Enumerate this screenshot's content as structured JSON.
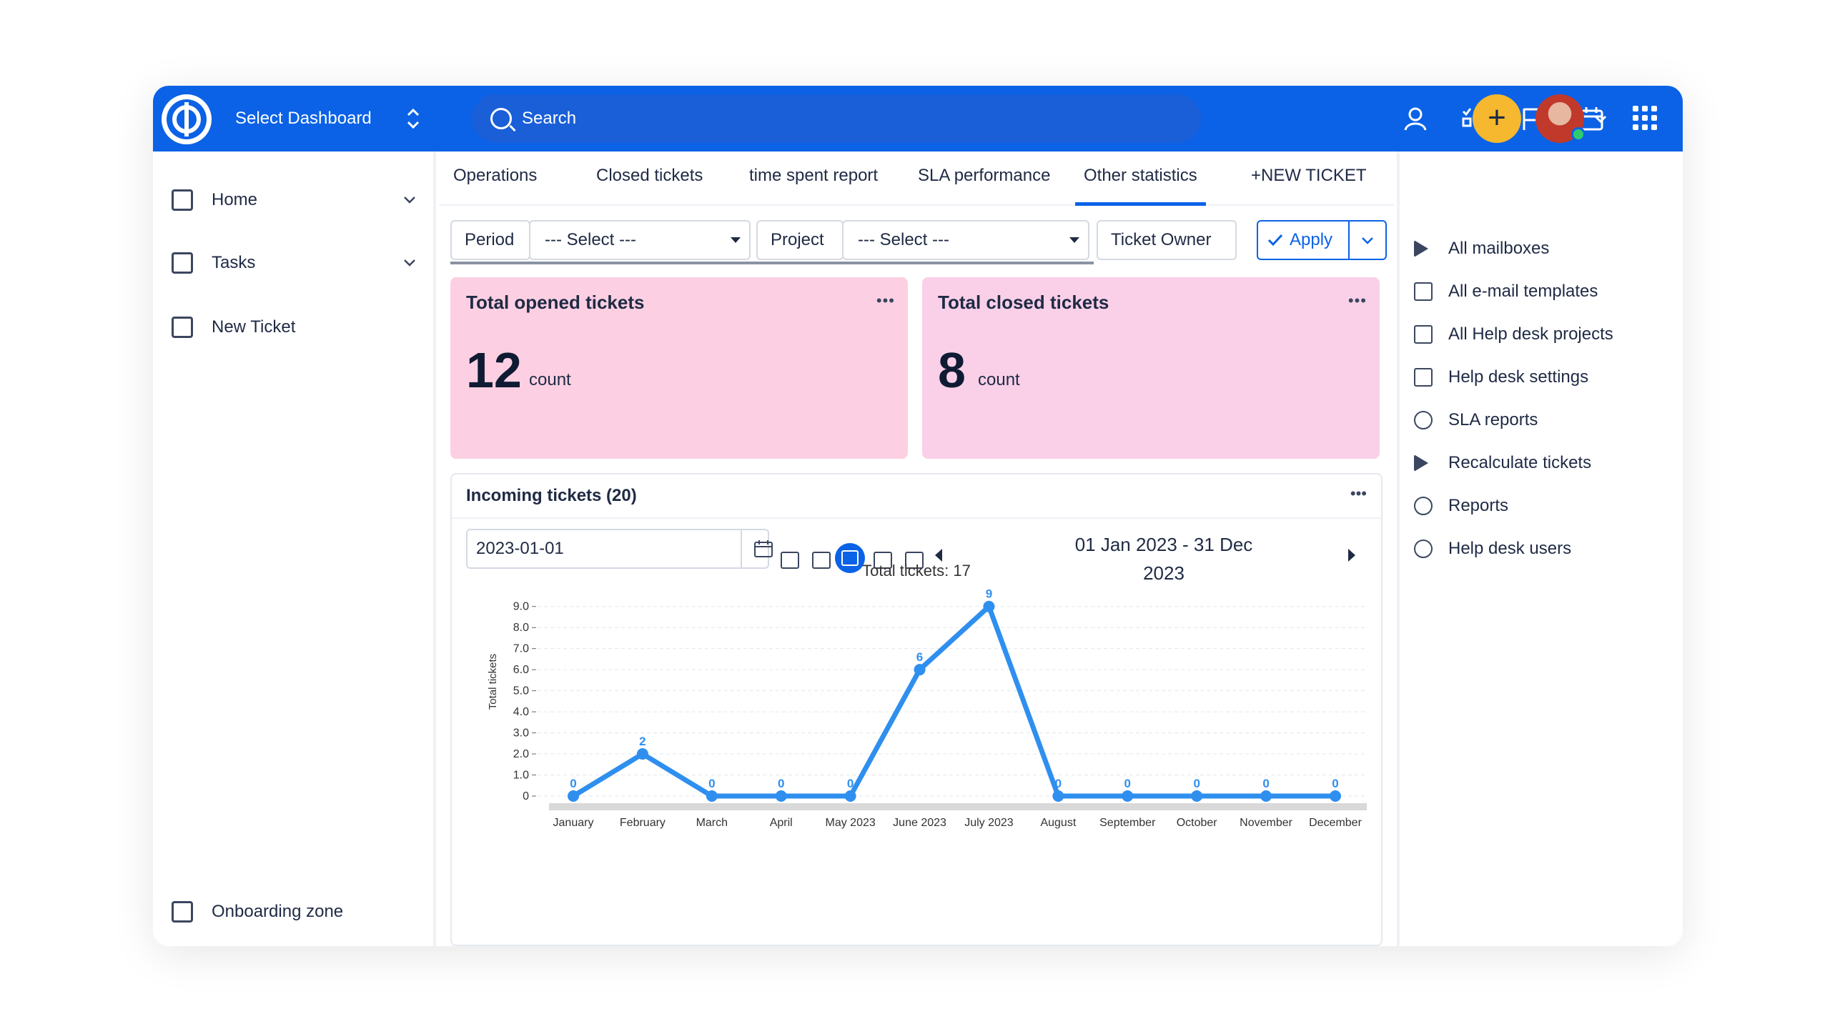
{
  "header": {
    "dashboard_label": "Select Dashboard",
    "search_placeholder": "Search",
    "icons": [
      "user-icon",
      "task-list-icon",
      "flag-icon",
      "calendar-icon",
      "plus-icon",
      "avatar",
      "chevron-down-icon",
      "apps-grid-icon"
    ],
    "accent_color": "#0b62e6",
    "plus_color": "#f5b82e"
  },
  "sidebar": {
    "items": [
      {
        "label": "Home",
        "icon": "dashboard-icon"
      },
      {
        "label": "Tasks",
        "icon": "clipboard-icon"
      },
      {
        "label": "New Ticket",
        "icon": "plus-square-icon"
      }
    ],
    "onboarding": "Onboarding zone"
  },
  "tabs": [
    {
      "label": "Operations"
    },
    {
      "label": "Closed tickets"
    },
    {
      "label": "time spent report"
    },
    {
      "label": "SLA performance"
    },
    {
      "label": "Other statistics",
      "active": true
    },
    {
      "label": "+NEW TICKET"
    }
  ],
  "filters": {
    "period_label": "Period",
    "period_value": "--- Select ---",
    "project_label": "Project",
    "project_value": "--- Select ---",
    "owner_label": "Ticket Owner",
    "apply_label": "Apply"
  },
  "kpis": [
    {
      "title": "Total opened tickets",
      "value": "12",
      "unit": "count",
      "color": "#fcd0e2"
    },
    {
      "title": "Total closed tickets",
      "value": "8",
      "unit": "count",
      "color": "#f9d0e8"
    }
  ],
  "panel": {
    "title": "Incoming tickets (20)",
    "date_value": "2023-01-01",
    "range_line1": "01 Jan 2023 - 31 Dec",
    "range_line2": "2023"
  },
  "chart_data": {
    "type": "line",
    "title": "Total tickets: 17",
    "ylabel": "Total tickets",
    "xlabel": "",
    "categories": [
      "January",
      "February",
      "March",
      "April",
      "May 2023",
      "June 2023",
      "July 2023",
      "August",
      "September",
      "October",
      "November",
      "December"
    ],
    "values": [
      0,
      2,
      0,
      0,
      0,
      6,
      9,
      0,
      0,
      0,
      0,
      0
    ],
    "data_labels": [
      "0",
      "2",
      "0",
      "0",
      "0",
      "6",
      "9",
      "0",
      "0",
      "0",
      "0",
      "0"
    ],
    "yticks": [
      "0",
      "1.0",
      "2.0",
      "3.0",
      "4.0",
      "5.0",
      "6.0",
      "7.0",
      "8.0",
      "9.0"
    ],
    "ylim": [
      0,
      9.5
    ],
    "grid": true,
    "line_color": "#2f8fef"
  },
  "right_sidebar": {
    "items": [
      {
        "label": "All mailboxes",
        "icon": "mailbox-icon"
      },
      {
        "label": "All e-mail templates",
        "icon": "mail-icon"
      },
      {
        "label": "All Help desk projects",
        "icon": "tree-icon"
      },
      {
        "label": "Help desk settings",
        "icon": "settings-sliders-icon"
      },
      {
        "label": "SLA reports",
        "icon": "target-icon"
      },
      {
        "label": "Recalculate tickets",
        "icon": "play-icon"
      },
      {
        "label": "Reports",
        "icon": "target-icon"
      },
      {
        "label": "Help desk users",
        "icon": "user-icon"
      }
    ]
  }
}
